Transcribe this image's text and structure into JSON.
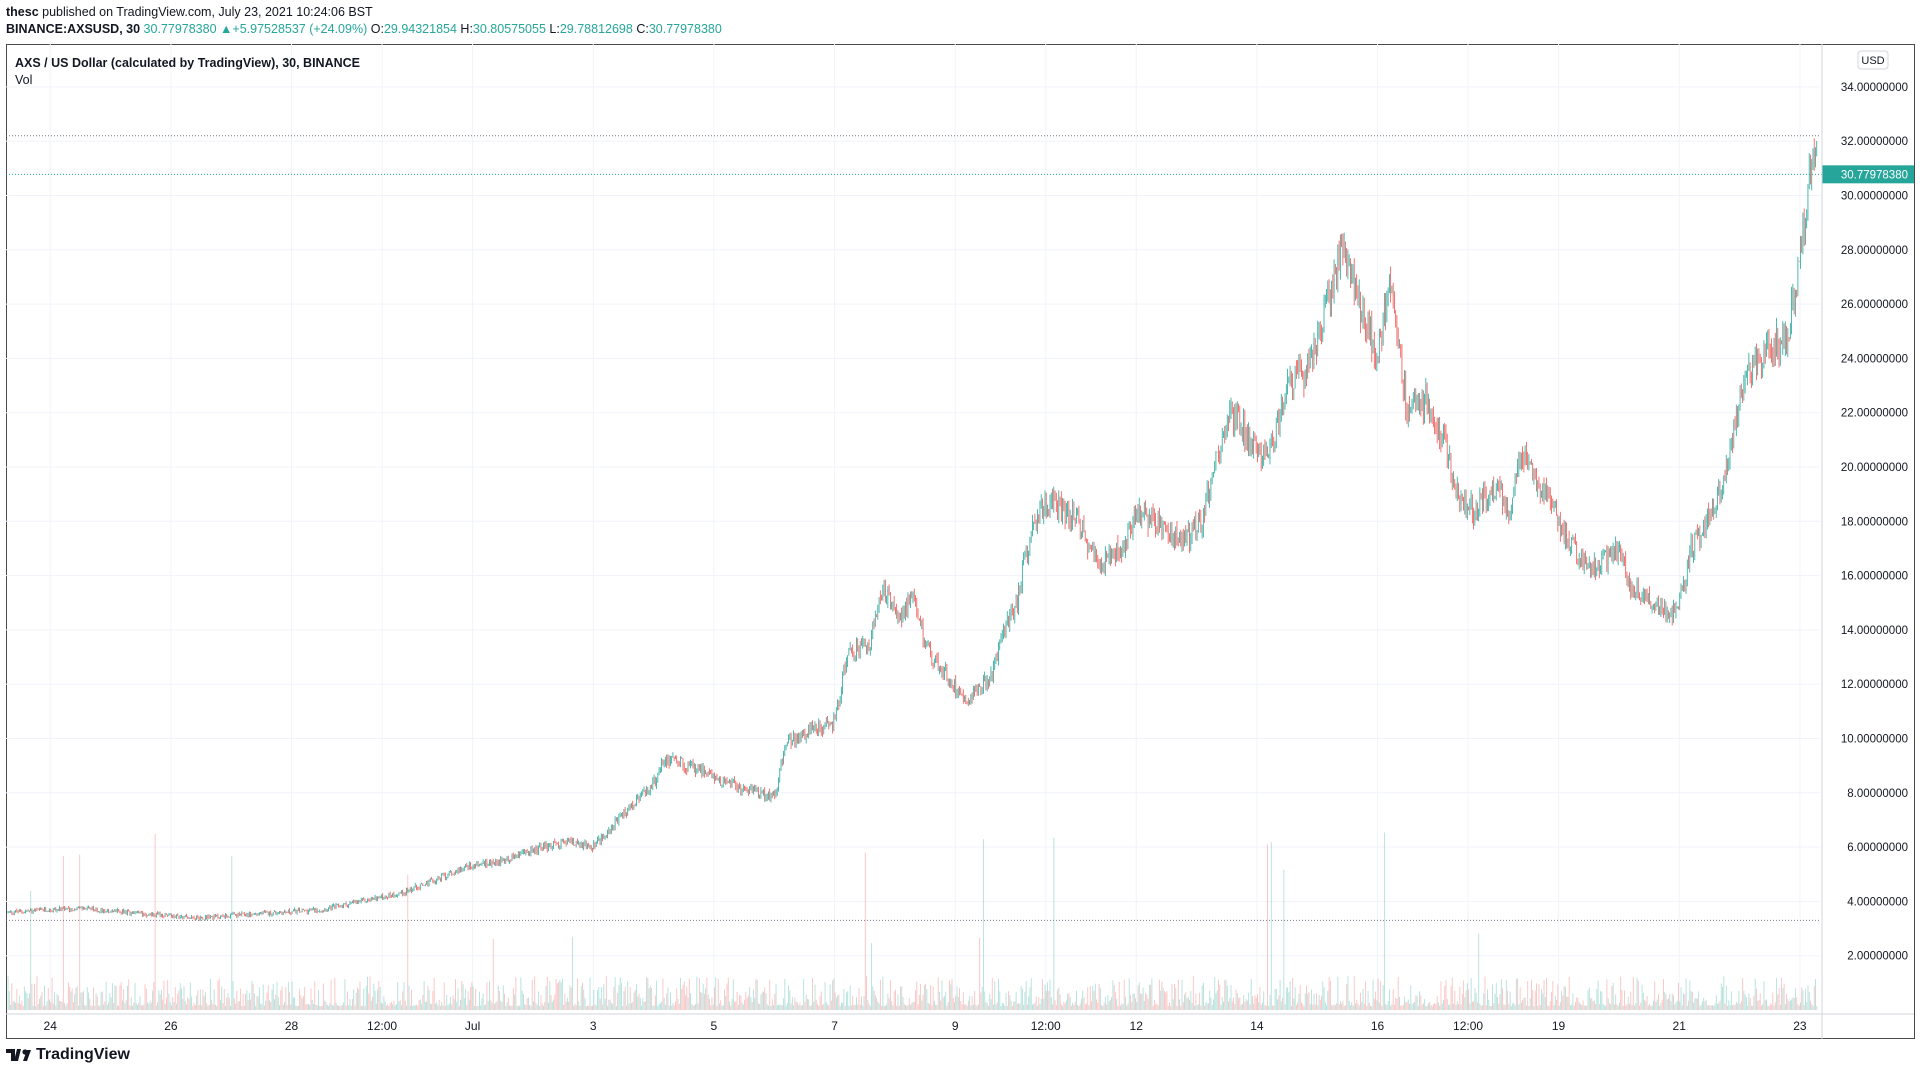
{
  "header": {
    "user": "thesc",
    "published": "published on TradingView.com, July 23, 2021 10:24:06 BST"
  },
  "ohlc": {
    "symbol": "BINANCE:AXSUSD, 30",
    "last": "30.77978380",
    "change": "+5.97528537 (+24.09%)",
    "o_label": "O:",
    "o": "29.94321854",
    "h_label": "H:",
    "h": "30.80575055",
    "l_label": "L:",
    "l": "29.78812698",
    "c_label": "C:",
    "c": "30.77978380"
  },
  "legend": {
    "title": "AXS / US Dollar (calculated by TradingView), 30, BINANCE",
    "vol": "Vol"
  },
  "footer": {
    "brand": "TradingView"
  },
  "colors": {
    "up": "#26a69a",
    "down": "#ef5350",
    "grid": "#f0f3fa",
    "last_price_bg": "#26a69a"
  },
  "chart_data": {
    "type": "candlestick",
    "title": "AXS / US Dollar (calculated by TradingView), 30, BINANCE",
    "currency": "USD",
    "timeframe": "30",
    "ylim": [
      0,
      35
    ],
    "yticks": [
      2,
      4,
      6,
      8,
      10,
      12,
      14,
      16,
      18,
      20,
      22,
      24,
      26,
      28,
      30,
      32,
      34
    ],
    "ytick_labels": [
      "2.00000000",
      "4.00000000",
      "6.00000000",
      "8.00000000",
      "10.00000000",
      "12.00000000",
      "14.00000000",
      "16.00000000",
      "18.00000000",
      "20.00000000",
      "22.00000000",
      "24.00000000",
      "26.00000000",
      "28.00000000",
      "30.00000000",
      "32.00000000",
      "34.00000000"
    ],
    "xticks": [
      "24",
      "26",
      "28",
      "12:00",
      "Jul",
      "3",
      "5",
      "7",
      "9",
      "12:00",
      "12",
      "14",
      "16",
      "12:00",
      "19",
      "21",
      "23"
    ],
    "xtick_days": [
      24,
      26,
      28,
      29.5,
      31,
      33,
      35,
      37,
      39,
      40.5,
      42,
      44,
      46,
      47.5,
      49,
      51,
      53
    ],
    "x_start_day": 23.3,
    "x_end_day": 53.3,
    "last_price": 30.7797838,
    "last_price_label": "30.77978380",
    "high_line": 32.2,
    "low_line": 3.3,
    "anchors": [
      [
        23.3,
        3.6
      ],
      [
        24.5,
        3.75
      ],
      [
        25.5,
        3.55
      ],
      [
        26.5,
        3.4
      ],
      [
        27.5,
        3.55
      ],
      [
        28.5,
        3.7
      ],
      [
        29.8,
        4.3
      ],
      [
        30.4,
        4.8
      ],
      [
        30.9,
        5.3
      ],
      [
        31.5,
        5.5
      ],
      [
        32.0,
        5.9
      ],
      [
        32.6,
        6.2
      ],
      [
        33.0,
        6.0
      ],
      [
        33.5,
        7.2
      ],
      [
        34.0,
        8.3
      ],
      [
        34.2,
        9.3
      ],
      [
        34.8,
        8.8
      ],
      [
        35.4,
        8.2
      ],
      [
        36.0,
        7.9
      ],
      [
        36.2,
        9.8
      ],
      [
        36.6,
        10.3
      ],
      [
        37.0,
        10.6
      ],
      [
        37.2,
        13.0
      ],
      [
        37.6,
        13.5
      ],
      [
        37.8,
        15.6
      ],
      [
        38.0,
        14.5
      ],
      [
        38.3,
        15.0
      ],
      [
        38.6,
        13.0
      ],
      [
        39.0,
        11.9
      ],
      [
        39.2,
        11.5
      ],
      [
        39.6,
        12.3
      ],
      [
        39.8,
        14.0
      ],
      [
        40.0,
        14.8
      ],
      [
        40.3,
        18.2
      ],
      [
        40.6,
        18.8
      ],
      [
        41.0,
        18.0
      ],
      [
        41.4,
        16.5
      ],
      [
        41.8,
        17.2
      ],
      [
        42.0,
        18.4
      ],
      [
        42.4,
        17.8
      ],
      [
        42.8,
        17.3
      ],
      [
        43.1,
        18.1
      ],
      [
        43.3,
        20.2
      ],
      [
        43.6,
        22.0
      ],
      [
        43.9,
        21.0
      ],
      [
        44.2,
        20.4
      ],
      [
        44.5,
        23.0
      ],
      [
        44.8,
        23.5
      ],
      [
        45.0,
        24.5
      ],
      [
        45.2,
        26.3
      ],
      [
        45.4,
        28.0
      ],
      [
        45.7,
        26.0
      ],
      [
        46.0,
        24.0
      ],
      [
        46.2,
        27.0
      ],
      [
        46.5,
        22.0
      ],
      [
        46.8,
        22.5
      ],
      [
        47.1,
        21.0
      ],
      [
        47.3,
        19.0
      ],
      [
        47.6,
        18.3
      ],
      [
        47.9,
        19.3
      ],
      [
        48.2,
        18.5
      ],
      [
        48.4,
        20.5
      ],
      [
        48.7,
        19.3
      ],
      [
        49.0,
        17.9
      ],
      [
        49.3,
        16.8
      ],
      [
        49.6,
        16.3
      ],
      [
        50.0,
        17.0
      ],
      [
        50.2,
        15.6
      ],
      [
        50.5,
        15.2
      ],
      [
        50.8,
        14.6
      ],
      [
        51.0,
        14.9
      ],
      [
        51.2,
        17.0
      ],
      [
        51.5,
        18.2
      ],
      [
        51.8,
        20.0
      ],
      [
        52.0,
        22.5
      ],
      [
        52.3,
        24.0
      ],
      [
        52.6,
        24.5
      ],
      [
        52.8,
        24.8
      ],
      [
        53.0,
        27.5
      ],
      [
        53.15,
        30.5
      ],
      [
        53.22,
        32.0
      ],
      [
        53.3,
        30.8
      ]
    ]
  }
}
